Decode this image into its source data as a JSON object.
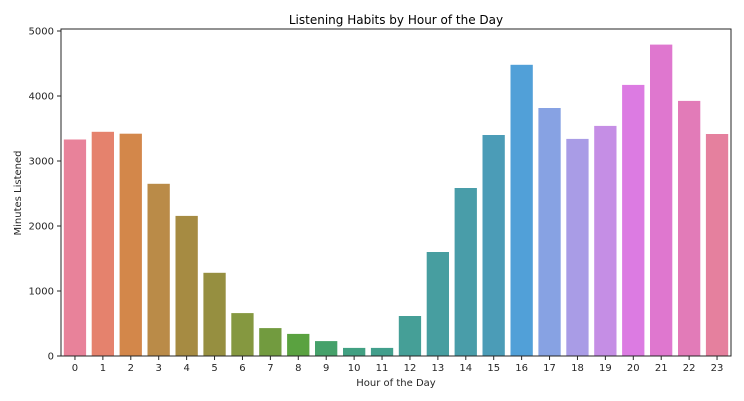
{
  "chart_data": {
    "type": "bar",
    "title": "Listening Habits by Hour of the Day",
    "xlabel": "Hour of the Day",
    "ylabel": "Minutes Listened",
    "categories": [
      "0",
      "1",
      "2",
      "3",
      "4",
      "5",
      "6",
      "7",
      "8",
      "9",
      "10",
      "11",
      "12",
      "13",
      "14",
      "15",
      "16",
      "17",
      "18",
      "19",
      "20",
      "21",
      "22",
      "23"
    ],
    "values": [
      3330,
      3450,
      3420,
      2650,
      2155,
      1280,
      660,
      430,
      340,
      230,
      125,
      125,
      615,
      1600,
      2585,
      3400,
      4480,
      3815,
      3340,
      3540,
      4170,
      4790,
      3925,
      3415
    ],
    "colors": [
      "#e8829a",
      "#e5826d",
      "#d3874a",
      "#ba8b48",
      "#a68b42",
      "#968f40",
      "#859840",
      "#729b3f",
      "#5aa240",
      "#45a16a",
      "#41a082",
      "#429f8c",
      "#459f97",
      "#479ea0",
      "#499da9",
      "#4b9cb7",
      "#51a0d8",
      "#87a2e3",
      "#a99ce6",
      "#c58ee5",
      "#dc7be2",
      "#df77cf",
      "#e27bb8",
      "#e5809e"
    ],
    "yticks": [
      0,
      1000,
      2000,
      3000,
      4000,
      5000
    ],
    "ylim": [
      0,
      5050
    ],
    "grid": false,
    "legend": null
  }
}
